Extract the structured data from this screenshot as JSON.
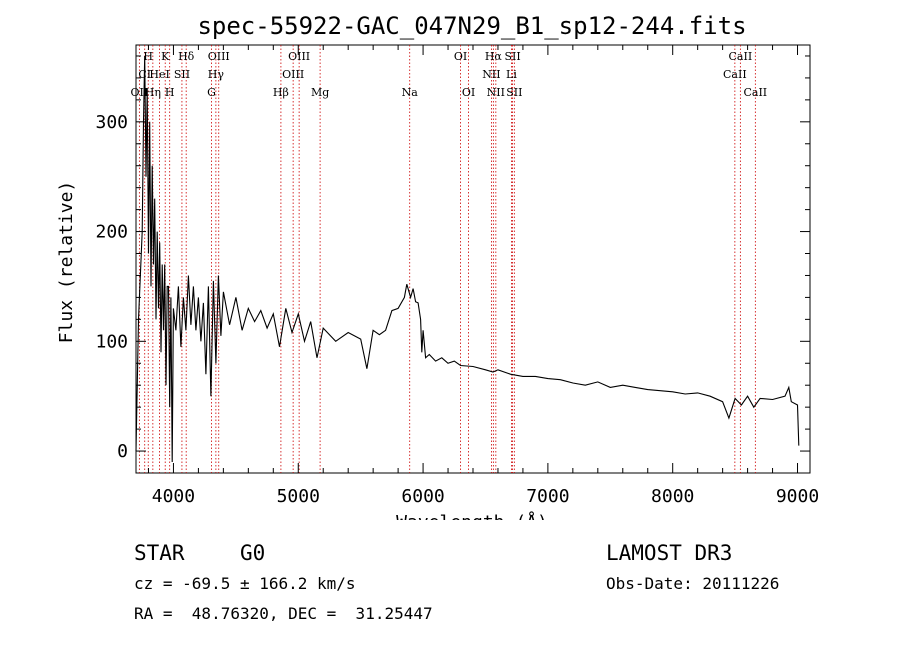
{
  "chart_data": {
    "type": "line",
    "title": "spec-55922-GAC_047N29_B1_sp12-244.fits",
    "xlabel": "Wavelength (Å)",
    "ylabel": "Flux (relative)",
    "xlim": [
      3700,
      9100
    ],
    "ylim": [
      -20,
      370
    ],
    "xticks": [
      4000,
      5000,
      6000,
      7000,
      8000,
      9000
    ],
    "yticks": [
      0,
      100,
      200,
      300
    ],
    "series": [
      {
        "name": "spectrum",
        "points": [
          [
            3700,
            0
          ],
          [
            3720,
            120
          ],
          [
            3750,
            200
          ],
          [
            3760,
            300
          ],
          [
            3770,
            360
          ],
          [
            3780,
            250
          ],
          [
            3790,
            330
          ],
          [
            3800,
            180
          ],
          [
            3810,
            300
          ],
          [
            3820,
            150
          ],
          [
            3830,
            260
          ],
          [
            3840,
            170
          ],
          [
            3850,
            230
          ],
          [
            3860,
            120
          ],
          [
            3870,
            200
          ],
          [
            3880,
            130
          ],
          [
            3890,
            190
          ],
          [
            3900,
            90
          ],
          [
            3910,
            170
          ],
          [
            3920,
            110
          ],
          [
            3930,
            170
          ],
          [
            3940,
            60
          ],
          [
            3950,
            150
          ],
          [
            3960,
            150
          ],
          [
            3970,
            40
          ],
          [
            3980,
            140
          ],
          [
            3990,
            -10
          ],
          [
            4000,
            130
          ],
          [
            4020,
            110
          ],
          [
            4040,
            150
          ],
          [
            4060,
            95
          ],
          [
            4080,
            140
          ],
          [
            4100,
            110
          ],
          [
            4120,
            160
          ],
          [
            4140,
            115
          ],
          [
            4160,
            150
          ],
          [
            4180,
            110
          ],
          [
            4200,
            140
          ],
          [
            4220,
            100
          ],
          [
            4240,
            135
          ],
          [
            4260,
            70
          ],
          [
            4280,
            150
          ],
          [
            4300,
            50
          ],
          [
            4320,
            155
          ],
          [
            4340,
            80
          ],
          [
            4360,
            160
          ],
          [
            4380,
            105
          ],
          [
            4400,
            145
          ],
          [
            4450,
            115
          ],
          [
            4500,
            140
          ],
          [
            4550,
            110
          ],
          [
            4600,
            130
          ],
          [
            4650,
            118
          ],
          [
            4700,
            128
          ],
          [
            4750,
            112
          ],
          [
            4800,
            125
          ],
          [
            4850,
            95
          ],
          [
            4900,
            130
          ],
          [
            4950,
            108
          ],
          [
            5000,
            125
          ],
          [
            5050,
            100
          ],
          [
            5100,
            118
          ],
          [
            5150,
            85
          ],
          [
            5200,
            112
          ],
          [
            5300,
            100
          ],
          [
            5400,
            108
          ],
          [
            5500,
            102
          ],
          [
            5550,
            75
          ],
          [
            5600,
            110
          ],
          [
            5650,
            106
          ],
          [
            5700,
            110
          ],
          [
            5750,
            128
          ],
          [
            5800,
            130
          ],
          [
            5850,
            140
          ],
          [
            5870,
            152
          ],
          [
            5900,
            140
          ],
          [
            5920,
            148
          ],
          [
            5940,
            136
          ],
          [
            5960,
            135
          ],
          [
            5980,
            120
          ],
          [
            5990,
            90
          ],
          [
            6000,
            110
          ],
          [
            6020,
            85
          ],
          [
            6050,
            88
          ],
          [
            6100,
            82
          ],
          [
            6150,
            85
          ],
          [
            6200,
            80
          ],
          [
            6250,
            82
          ],
          [
            6300,
            78
          ],
          [
            6400,
            77
          ],
          [
            6500,
            74
          ],
          [
            6560,
            72
          ],
          [
            6600,
            74
          ],
          [
            6700,
            70
          ],
          [
            6800,
            68
          ],
          [
            6900,
            68
          ],
          [
            7000,
            66
          ],
          [
            7100,
            65
          ],
          [
            7200,
            62
          ],
          [
            7300,
            60
          ],
          [
            7400,
            63
          ],
          [
            7500,
            58
          ],
          [
            7600,
            60
          ],
          [
            7700,
            58
          ],
          [
            7800,
            56
          ],
          [
            7900,
            55
          ],
          [
            8000,
            54
          ],
          [
            8100,
            52
          ],
          [
            8200,
            53
          ],
          [
            8300,
            50
          ],
          [
            8400,
            45
          ],
          [
            8450,
            30
          ],
          [
            8500,
            48
          ],
          [
            8550,
            42
          ],
          [
            8600,
            50
          ],
          [
            8650,
            40
          ],
          [
            8700,
            48
          ],
          [
            8800,
            47
          ],
          [
            8900,
            50
          ],
          [
            8930,
            58
          ],
          [
            8950,
            45
          ],
          [
            9000,
            42
          ],
          [
            9010,
            5
          ]
        ]
      }
    ],
    "line_markers": [
      {
        "label": "H",
        "wl": 3798,
        "row": 0
      },
      {
        "label": "K",
        "wl": 3934,
        "row": 0
      },
      {
        "label": "Hδ",
        "wl": 4102,
        "row": 0
      },
      {
        "label": "OIII",
        "wl": 4363,
        "row": 0
      },
      {
        "label": "OIII",
        "wl": 5007,
        "row": 0
      },
      {
        "label": "OI",
        "wl": 6300,
        "row": 0
      },
      {
        "label": "Hα",
        "wl": 6563,
        "row": 0
      },
      {
        "label": "SII",
        "wl": 6717,
        "row": 0
      },
      {
        "label": "CaII",
        "wl": 8542,
        "row": 0
      },
      {
        "label": "CI",
        "wl": 3770,
        "row": 1
      },
      {
        "label": "HeI",
        "wl": 3889,
        "row": 1
      },
      {
        "label": "SII",
        "wl": 4068,
        "row": 1
      },
      {
        "label": "Hγ",
        "wl": 4340,
        "row": 1
      },
      {
        "label": "OIII",
        "wl": 4959,
        "row": 1
      },
      {
        "label": "NII",
        "wl": 6548,
        "row": 1
      },
      {
        "label": "Li",
        "wl": 6708,
        "row": 1
      },
      {
        "label": "CaII",
        "wl": 8498,
        "row": 1
      },
      {
        "label": "OII",
        "wl": 3727,
        "row": 2
      },
      {
        "label": "Hη",
        "wl": 3835,
        "row": 2
      },
      {
        "label": "H",
        "wl": 3970,
        "row": 2
      },
      {
        "label": "G",
        "wl": 4305,
        "row": 2
      },
      {
        "label": "Hβ",
        "wl": 4861,
        "row": 2
      },
      {
        "label": "Mg",
        "wl": 5175,
        "row": 2
      },
      {
        "label": "Na",
        "wl": 5893,
        "row": 2
      },
      {
        "label": "OI",
        "wl": 6364,
        "row": 2
      },
      {
        "label": "NII",
        "wl": 6583,
        "row": 2
      },
      {
        "label": "SII",
        "wl": 6731,
        "row": 2
      },
      {
        "label": "CaII",
        "wl": 8662,
        "row": 2
      }
    ],
    "marker_color": "#cc0000"
  },
  "info": {
    "class": "STAR",
    "subclass": "G0",
    "survey": "LAMOST DR3",
    "cz": "cz = -69.5 ± 166.2 km/s",
    "obs_date": "Obs-Date: 20111226",
    "coords": "RA =  48.76320, DEC =  31.25447"
  }
}
